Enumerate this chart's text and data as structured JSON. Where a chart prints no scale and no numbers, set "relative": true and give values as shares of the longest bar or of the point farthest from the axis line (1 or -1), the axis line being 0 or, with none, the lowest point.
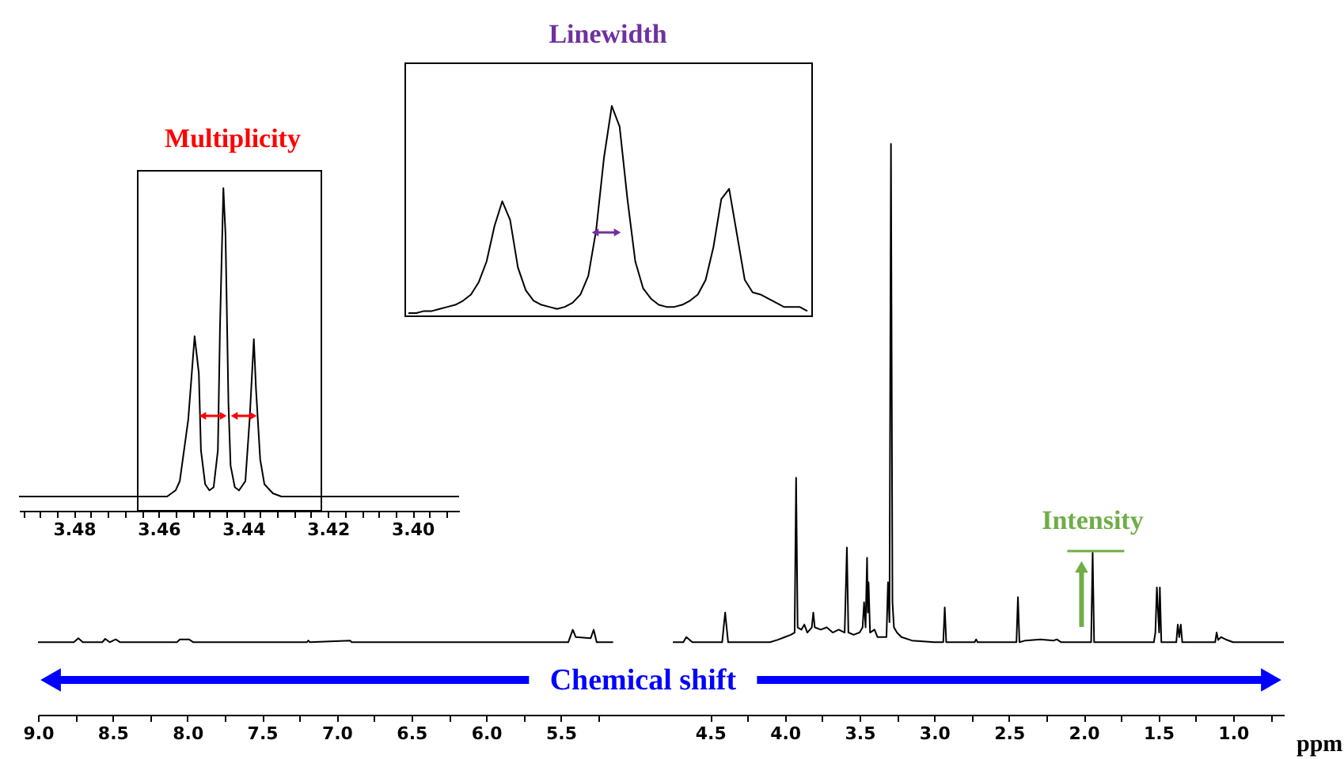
{
  "chart_data": [
    {
      "type": "line",
      "title": "Multiplicity",
      "relative": true,
      "color": "#000000",
      "x": [
        3.493,
        3.466,
        3.458,
        3.456,
        3.455,
        3.454,
        3.453,
        3.4515,
        3.4505,
        3.45,
        3.449,
        3.448,
        3.447,
        3.446,
        3.4455,
        3.4447,
        3.4442,
        3.4435,
        3.443,
        3.442,
        3.441,
        3.4395,
        3.4385,
        3.4375,
        3.437,
        3.436,
        3.435,
        3.433,
        3.431,
        3.389
      ],
      "values": [
        0.044,
        0.044,
        0.044,
        0.063,
        0.092,
        0.187,
        0.283,
        0.541,
        0.426,
        0.187,
        0.082,
        0.063,
        0.073,
        0.187,
        0.57,
        1.0,
        0.857,
        0.331,
        0.14,
        0.073,
        0.063,
        0.092,
        0.283,
        0.532,
        0.379,
        0.159,
        0.082,
        0.054,
        0.044,
        0.044
      ],
      "xlim": [
        3.493,
        3.389
      ],
      "xticks": [
        {
          "value": 3.492,
          "label": null
        },
        {
          "value": 3.488,
          "label": null
        },
        {
          "value": 3.484,
          "label": null
        },
        3.48,
        {
          "value": 3.476,
          "label": null
        },
        {
          "value": 3.472,
          "label": null
        },
        {
          "value": 3.468,
          "label": null
        },
        {
          "value": 3.464,
          "label": null
        },
        3.46,
        {
          "value": 3.456,
          "label": null
        },
        {
          "value": 3.452,
          "label": null
        },
        {
          "value": 3.448,
          "label": null
        },
        {
          "value": 3.444,
          "label": null
        },
        3.44,
        {
          "value": 3.436,
          "label": null
        },
        {
          "value": 3.432,
          "label": null
        },
        {
          "value": 3.428,
          "label": null
        },
        {
          "value": 3.424,
          "label": null
        },
        3.42,
        {
          "value": 3.416,
          "label": null
        },
        {
          "value": 3.412,
          "label": null
        },
        {
          "value": 3.408,
          "label": null
        },
        {
          "value": 3.404,
          "label": null
        },
        {
          "value": 3.4,
          "label": "3.40"
        },
        {
          "value": 3.396,
          "label": null
        },
        {
          "value": 3.392,
          "label": null
        }
      ]
    },
    {
      "type": "line",
      "title": "Linewidth",
      "relative": true,
      "color": "#000000",
      "categories": [
        null,
        null,
        null,
        null,
        null,
        null,
        null,
        null,
        null,
        null,
        null,
        null,
        null,
        null,
        null,
        null,
        null,
        null,
        null,
        null,
        null,
        null,
        null,
        null,
        null,
        null,
        null,
        null,
        null,
        null,
        null,
        null,
        null,
        null,
        null,
        null,
        null,
        null,
        null,
        null,
        null,
        null,
        null,
        null,
        null,
        null,
        null,
        null,
        null,
        null,
        null,
        null
      ],
      "values": [
        0.0,
        0.0,
        0.01,
        0.01,
        0.02,
        0.03,
        0.04,
        0.06,
        0.09,
        0.15,
        0.25,
        0.42,
        0.54,
        0.45,
        0.22,
        0.11,
        0.06,
        0.04,
        0.03,
        0.02,
        0.03,
        0.05,
        0.09,
        0.18,
        0.4,
        0.75,
        1.0,
        0.9,
        0.55,
        0.25,
        0.12,
        0.07,
        0.04,
        0.03,
        0.03,
        0.04,
        0.06,
        0.09,
        0.16,
        0.32,
        0.55,
        0.6,
        0.38,
        0.16,
        0.1,
        0.09,
        0.07,
        0.05,
        0.03,
        0.03,
        0.03,
        0.01
      ]
    },
    {
      "type": "line",
      "xlabel": "ppm",
      "relative": true,
      "color": "#000000",
      "x": [
        9.0,
        8.76,
        8.73,
        8.7,
        8.57,
        8.55,
        8.52,
        8.48,
        8.45,
        8.07,
        8.05,
        7.99,
        7.96,
        7.2,
        7.19,
        7.18,
        6.91,
        6.9,
        5.45,
        5.42,
        5.4,
        5.3,
        5.28,
        5.26,
        5.15,
        4.95,
        4.75,
        4.68,
        4.66,
        4.62,
        4.42,
        4.4,
        4.38,
        4.1,
        4.05,
        4.0,
        3.96,
        3.935,
        3.925,
        3.915,
        3.89,
        3.87,
        3.85,
        3.82,
        3.81,
        3.8,
        3.76,
        3.72,
        3.68,
        3.64,
        3.6,
        3.585,
        3.575,
        3.54,
        3.5,
        3.48,
        3.47,
        3.46,
        3.45,
        3.445,
        3.44,
        3.43,
        3.4,
        3.38,
        3.32,
        3.31,
        3.3,
        3.29,
        3.28,
        3.27,
        3.25,
        3.22,
        3.15,
        3.0,
        2.94,
        2.93,
        2.92,
        2.73,
        2.72,
        2.71,
        2.45,
        2.44,
        2.43,
        2.39,
        2.29,
        2.2,
        2.18,
        2.15,
        1.95,
        1.94,
        1.93,
        1.65,
        1.53,
        1.52,
        1.51,
        1.495,
        1.49,
        1.48,
        1.38,
        1.37,
        1.36,
        1.35,
        1.34,
        1.12,
        1.11,
        1.1,
        1.08,
        1.05,
        1.0,
        0.66
      ],
      "values": [
        0.127,
        0.127,
        0.134,
        0.127,
        0.127,
        0.133,
        0.127,
        0.132,
        0.127,
        0.127,
        0.132,
        0.132,
        0.127,
        0.127,
        0.13,
        0.127,
        0.13,
        0.127,
        0.127,
        0.149,
        0.136,
        0.134,
        0.149,
        0.127,
        0.127,
        null,
        0.127,
        0.127,
        0.136,
        0.127,
        0.127,
        0.179,
        0.127,
        0.127,
        0.131,
        0.136,
        0.14,
        0.144,
        0.415,
        0.153,
        0.149,
        0.158,
        0.144,
        0.153,
        0.179,
        0.153,
        0.149,
        0.153,
        0.144,
        0.149,
        0.144,
        0.293,
        0.144,
        0.14,
        0.144,
        0.153,
        0.197,
        0.153,
        0.275,
        0.179,
        0.232,
        0.144,
        0.149,
        0.136,
        0.136,
        0.232,
        0.162,
        1.0,
        0.197,
        0.153,
        0.144,
        0.136,
        0.13,
        0.127,
        0.127,
        0.188,
        0.127,
        0.127,
        0.132,
        0.127,
        0.127,
        0.206,
        0.127,
        0.13,
        0.132,
        0.13,
        0.132,
        0.127,
        0.127,
        0.284,
        0.127,
        0.127,
        0.127,
        0.144,
        0.223,
        0.144,
        0.223,
        0.127,
        0.127,
        0.158,
        0.136,
        0.158,
        0.127,
        0.127,
        0.144,
        0.131,
        0.136,
        0.132,
        0.127,
        0.127
      ],
      "xlim": [
        9.0,
        0.66
      ],
      "xticks": [
        {
          "value": 9.0,
          "label": "9.0"
        },
        {
          "value": 8.75,
          "label": null
        },
        8.5,
        {
          "value": 8.25,
          "label": null
        },
        {
          "value": 8.0,
          "label": "8.0"
        },
        {
          "value": 7.75,
          "label": null
        },
        7.5,
        {
          "value": 7.25,
          "label": null
        },
        {
          "value": 7.0,
          "label": "7.0"
        },
        {
          "value": 6.75,
          "label": null
        },
        6.5,
        {
          "value": 6.25,
          "label": null
        },
        {
          "value": 6.0,
          "label": "6.0"
        },
        {
          "value": 5.75,
          "label": null
        },
        5.5,
        {
          "value": 5.25,
          "label": null
        },
        4.5,
        {
          "value": 4.25,
          "label": null
        },
        {
          "value": 4.0,
          "label": "4.0"
        },
        {
          "value": 3.75,
          "label": null
        },
        3.5,
        {
          "value": 3.25,
          "label": null
        },
        {
          "value": 3.0,
          "label": "3.0"
        },
        {
          "value": 2.75,
          "label": null
        },
        2.5,
        {
          "value": 2.25,
          "label": null
        },
        {
          "value": 2.0,
          "label": "2.0"
        },
        {
          "value": 1.75,
          "label": null
        },
        1.5,
        {
          "value": 1.25,
          "label": null
        },
        {
          "value": 1.0,
          "label": "1.0"
        },
        {
          "value": 0.75,
          "label": null
        }
      ],
      "annotations": [
        {
          "text": "Intensity",
          "x": 1.94,
          "y": 0.284
        },
        "Chemical shift"
      ]
    }
  ]
}
